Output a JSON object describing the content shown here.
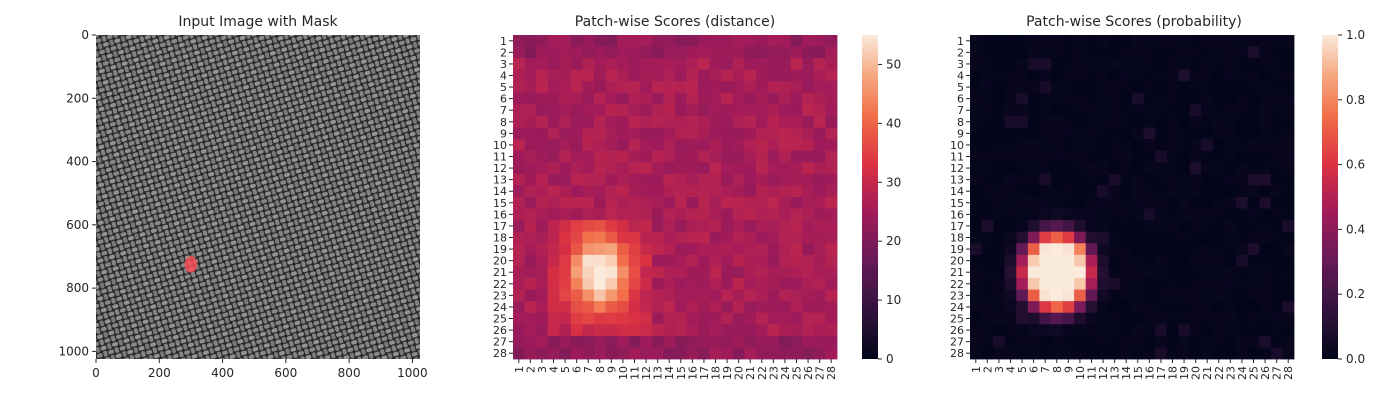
{
  "chart_data": [
    {
      "type": "image",
      "title": "Input Image with Mask",
      "xlim": [
        0,
        1024
      ],
      "ylim": [
        1024,
        0
      ],
      "xticks": [
        0,
        200,
        400,
        600,
        800,
        1000
      ],
      "yticks": [
        0,
        200,
        400,
        600,
        800,
        1000
      ],
      "image": "woven gray fabric texture",
      "mask": {
        "color": "#ff4d55",
        "center": [
          300,
          725
        ],
        "radius": [
          62,
          78
        ]
      }
    },
    {
      "type": "heatmap",
      "title": "Patch-wise Scores (distance)",
      "rows": 28,
      "cols": 28,
      "tick_labels": [
        "1",
        "2",
        "3",
        "4",
        "5",
        "6",
        "7",
        "8",
        "9",
        "10",
        "11",
        "12",
        "13",
        "14",
        "15",
        "16",
        "17",
        "18",
        "19",
        "20",
        "21",
        "22",
        "23",
        "24",
        "25",
        "26",
        "27",
        "28"
      ],
      "colorbar": {
        "min": 0,
        "max": 55,
        "ticks": [
          0,
          10,
          20,
          30,
          40,
          50
        ]
      },
      "colormap": "rocket",
      "background_value": 26,
      "hotspot": {
        "peak": 54.5,
        "rows": [
          17,
          26
        ],
        "cols": [
          4,
          12
        ],
        "center_row": 21,
        "center_col": 8
      }
    },
    {
      "type": "heatmap",
      "title": "Patch-wise Scores (probability)",
      "rows": 28,
      "cols": 28,
      "tick_labels": [
        "1",
        "2",
        "3",
        "4",
        "5",
        "6",
        "7",
        "8",
        "9",
        "10",
        "11",
        "12",
        "13",
        "14",
        "15",
        "16",
        "17",
        "18",
        "19",
        "20",
        "21",
        "22",
        "23",
        "24",
        "25",
        "26",
        "27",
        "28"
      ],
      "colorbar": {
        "min": 0.0,
        "max": 1.0,
        "ticks": [
          "0.0",
          "0.2",
          "0.4",
          "0.6",
          "0.8",
          "1.0"
        ]
      },
      "colormap": "rocket",
      "background_value": 0.02,
      "hotspot": {
        "peak": 1.0,
        "rows": [
          17,
          27
        ],
        "cols": [
          3,
          14
        ],
        "center_row": 21,
        "center_col": 8
      }
    }
  ]
}
